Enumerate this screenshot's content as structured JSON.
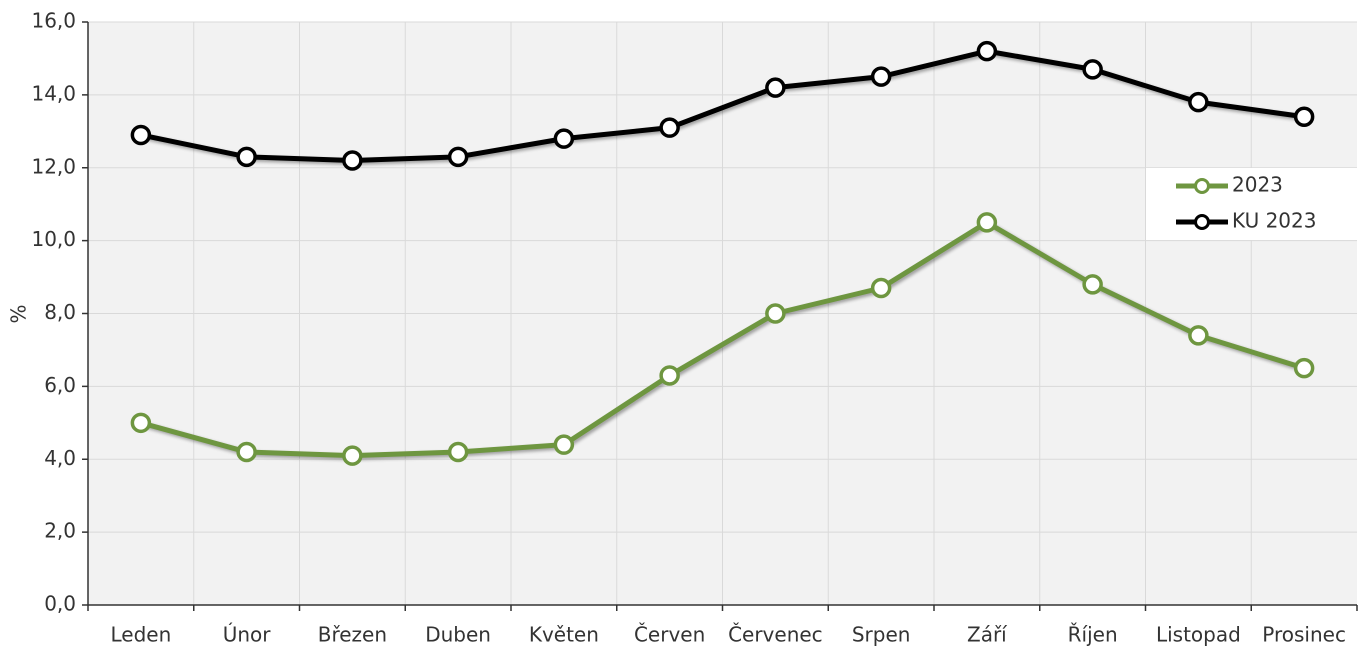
{
  "chart_data": {
    "type": "line",
    "y_label": "%",
    "categories": [
      "Leden",
      "Únor",
      "Březen",
      "Duben",
      "Květen",
      "Červen",
      "Červenec",
      "Srpen",
      "Září",
      "Říjen",
      "Listopad",
      "Prosinec"
    ],
    "series": [
      {
        "name": "2023",
        "color": "#6e9640",
        "values": [
          5.0,
          4.2,
          4.1,
          4.2,
          4.4,
          6.3,
          8.0,
          8.7,
          10.5,
          8.8,
          7.4,
          6.5
        ]
      },
      {
        "name": "KU 2023",
        "color": "#000000",
        "values": [
          12.9,
          12.3,
          12.2,
          12.3,
          12.8,
          13.1,
          14.2,
          14.5,
          15.2,
          14.7,
          13.8,
          13.4
        ]
      }
    ],
    "ylim": [
      0,
      16
    ],
    "yticks": [
      {
        "value": 0,
        "label": "0,0"
      },
      {
        "value": 2,
        "label": "2,0"
      },
      {
        "value": 4,
        "label": "4,0"
      },
      {
        "value": 6,
        "label": "6,0"
      },
      {
        "value": 8,
        "label": "8,0"
      },
      {
        "value": 10,
        "label": "10,0"
      },
      {
        "value": 12,
        "label": "12,0"
      },
      {
        "value": 14,
        "label": "14,0"
      },
      {
        "value": 16,
        "label": "16,0"
      }
    ],
    "grid": true,
    "legend": "right"
  }
}
